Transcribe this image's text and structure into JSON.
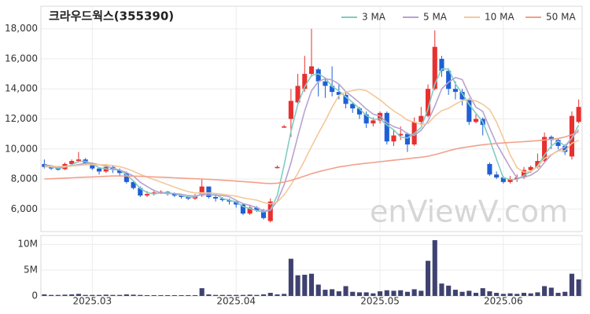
{
  "chart_data": {
    "type": "candlestick",
    "title": "크라우드웍스(355390)",
    "watermark": "enViewV.com",
    "categories": [
      null,
      null,
      null,
      null,
      null,
      null,
      null,
      "2025.03",
      null,
      null,
      null,
      null,
      null,
      null,
      null,
      null,
      null,
      null,
      null,
      null,
      null,
      null,
      null,
      null,
      null,
      null,
      null,
      null,
      "2025.04",
      null,
      null,
      null,
      null,
      null,
      null,
      null,
      null,
      null,
      null,
      null,
      null,
      null,
      null,
      null,
      null,
      null,
      null,
      null,
      null,
      "2025.05",
      null,
      null,
      null,
      null,
      null,
      null,
      null,
      null,
      null,
      null,
      null,
      null,
      null,
      null,
      null,
      null,
      null,
      "2025.06",
      null,
      null,
      null,
      null,
      null,
      null,
      null,
      null,
      null,
      null,
      null
    ],
    "open": [
      9000,
      8800,
      8700,
      8650,
      9000,
      9200,
      9300,
      9050,
      8700,
      8500,
      8800,
      8600,
      8400,
      7800,
      7400,
      6900,
      7000,
      7100,
      7150,
      7000,
      6900,
      6800,
      6700,
      6900,
      7500,
      6800,
      6700,
      6600,
      6500,
      6300,
      5700,
      6100,
      5900,
      5200,
      8750,
      11450,
      12000,
      13100,
      14000,
      15000,
      15300,
      14500,
      14200,
      13800,
      13600,
      13000,
      12700,
      12300,
      11700,
      11900,
      12400,
      10500,
      10900,
      11000,
      10300,
      11800,
      12200,
      14000,
      16000,
      15200,
      14000,
      13800,
      13300,
      11800,
      12000,
      9000,
      8300,
      8100,
      7800,
      8000,
      8100,
      8600,
      8800,
      9200,
      10800,
      10600,
      10200,
      9500,
      11800
    ],
    "high": [
      9300,
      8900,
      8800,
      9100,
      9300,
      9800,
      9400,
      9100,
      8800,
      9000,
      8900,
      8700,
      8500,
      7900,
      7500,
      7200,
      7300,
      7250,
      7200,
      7100,
      7000,
      6900,
      7000,
      8000,
      7500,
      6900,
      6800,
      6700,
      6600,
      6400,
      6300,
      6200,
      6000,
      6700,
      8900,
      11600,
      14000,
      15000,
      16200,
      18000,
      15400,
      14700,
      15500,
      14300,
      13800,
      13100,
      12800,
      12500,
      12100,
      12500,
      12500,
      11300,
      11500,
      11100,
      12100,
      12800,
      14300,
      17900,
      16200,
      15300,
      14500,
      14000,
      13400,
      12300,
      12100,
      9100,
      8500,
      8200,
      8200,
      8300,
      8800,
      8900,
      9700,
      11100,
      10900,
      10700,
      10300,
      12500,
      13300
    ],
    "low": [
      8700,
      8600,
      8550,
      8600,
      8900,
      9100,
      8900,
      8600,
      8300,
      8400,
      8400,
      8200,
      7700,
      7300,
      6800,
      6800,
      6900,
      7000,
      6900,
      6800,
      6700,
      6600,
      6600,
      6800,
      6700,
      6500,
      6500,
      6300,
      6100,
      5600,
      5600,
      5800,
      5300,
      5100,
      8700,
      11400,
      10800,
      13000,
      13800,
      14800,
      13500,
      13400,
      13500,
      13300,
      12700,
      12400,
      12000,
      11400,
      11500,
      11700,
      10300,
      10200,
      10600,
      9800,
      10200,
      11600,
      12100,
      13900,
      14800,
      13600,
      13300,
      12900,
      11600,
      11700,
      10900,
      8200,
      8000,
      7700,
      7700,
      7800,
      8000,
      8400,
      8700,
      9100,
      10000,
      10000,
      9600,
      9300,
      11700
    ],
    "close": [
      8800,
      8700,
      8650,
      9000,
      9200,
      9300,
      9050,
      8700,
      8500,
      8800,
      8600,
      8400,
      7800,
      7400,
      6900,
      7000,
      7100,
      7150,
      7000,
      6900,
      6800,
      6700,
      6900,
      7500,
      6800,
      6700,
      6600,
      6500,
      6300,
      5700,
      6100,
      5900,
      5400,
      6500,
      8800,
      11500,
      13200,
      14200,
      15000,
      15500,
      14500,
      14200,
      13800,
      13600,
      13000,
      12700,
      12300,
      11700,
      11900,
      12400,
      10500,
      10900,
      11000,
      10300,
      11800,
      12200,
      14000,
      16800,
      15200,
      14000,
      13800,
      13300,
      11800,
      12000,
      11600,
      8300,
      8100,
      7800,
      8000,
      8100,
      8600,
      8800,
      9200,
      10800,
      10600,
      10200,
      9800,
      12200,
      12800
    ],
    "up_color": "#e8302f",
    "down_color": "#1f5fd6",
    "ylim": [
      4500,
      19500
    ],
    "yticks": [
      {
        "value": 6000,
        "label": "6,000"
      },
      {
        "value": 8000,
        "label": "8,000"
      },
      {
        "value": 10000,
        "label": "10,000"
      },
      {
        "value": 12000,
        "label": "12,000"
      },
      {
        "value": 14000,
        "label": "14,000"
      },
      {
        "value": 16000,
        "label": "16,000"
      },
      {
        "value": 18000,
        "label": "18,000"
      }
    ],
    "grid": true,
    "legend": "top-right",
    "series": [
      {
        "name": "3 MA",
        "color": "#7fcdc4",
        "values": [
          8900,
          8800,
          8720,
          8780,
          8950,
          9170,
          9180,
          9020,
          8750,
          8670,
          8630,
          8600,
          8270,
          7870,
          7370,
          7100,
          7000,
          7080,
          7080,
          7020,
          6900,
          6800,
          6800,
          7030,
          7070,
          7000,
          6700,
          6600,
          6470,
          6170,
          6030,
          5900,
          5800,
          5930,
          6900,
          8930,
          11170,
          12970,
          14130,
          14900,
          15000,
          14730,
          14170,
          13870,
          13470,
          13100,
          12670,
          12230,
          11970,
          12000,
          11600,
          11270,
          10800,
          10730,
          11030,
          11430,
          12670,
          14330,
          15330,
          15330,
          14330,
          13700,
          12970,
          12370,
          11800,
          10630,
          9330,
          8070,
          7970,
          7970,
          8230,
          8500,
          8870,
          9600,
          10200,
          10530,
          10200,
          10730,
          11600
        ]
      },
      {
        "name": "5 MA",
        "color": "#b7a3cf",
        "values": [
          8950,
          8880,
          8800,
          8800,
          8870,
          8970,
          9040,
          9050,
          8950,
          8870,
          8730,
          8600,
          8420,
          8200,
          7780,
          7500,
          7240,
          7070,
          7030,
          7030,
          6990,
          6900,
          6860,
          6960,
          6940,
          6920,
          6900,
          6820,
          6580,
          6360,
          6240,
          6100,
          5880,
          5920,
          6540,
          7620,
          9080,
          10840,
          12540,
          13880,
          14480,
          14680,
          14600,
          14320,
          13820,
          13460,
          13080,
          12660,
          12320,
          12200,
          11760,
          11480,
          11340,
          11020,
          10900,
          11240,
          11860,
          12860,
          14000,
          14440,
          14760,
          14620,
          13620,
          12780,
          12500,
          11400,
          10360,
          9560,
          8760,
          8060,
          8120,
          8260,
          8540,
          9100,
          9600,
          9900,
          10120,
          10720,
          11280
        ]
      },
      {
        "name": "10 MA",
        "color": "#f3c89a",
        "values": [
          8800,
          8820,
          8840,
          8850,
          8870,
          8900,
          8950,
          8960,
          8950,
          8950,
          8900,
          8820,
          8690,
          8520,
          8310,
          8130,
          7960,
          7800,
          7630,
          7460,
          7300,
          7160,
          7070,
          7080,
          7070,
          7040,
          6990,
          6920,
          6860,
          6740,
          6670,
          6590,
          6440,
          6340,
          6470,
          6940,
          7610,
          8380,
          9250,
          10160,
          11040,
          11870,
          12770,
          13570,
          13790,
          13890,
          13970,
          13880,
          13580,
          13270,
          12890,
          12530,
          12250,
          11920,
          11790,
          11630,
          11690,
          12200,
          12550,
          12710,
          12980,
          13220,
          13300,
          13200,
          12970,
          12620,
          11800,
          10720,
          9600,
          8750,
          8450,
          8520,
          8810,
          9370,
          9630,
          9870,
          9880,
          10380,
          10580
        ]
      },
      {
        "name": "50 MA",
        "color": "#f2a08c",
        "values": [
          8000,
          8020,
          8040,
          8060,
          8080,
          8100,
          8120,
          8140,
          8160,
          8180,
          8200,
          8200,
          8200,
          8190,
          8180,
          8160,
          8140,
          8120,
          8100,
          8080,
          8060,
          8040,
          8020,
          8000,
          7980,
          7950,
          7920,
          7890,
          7860,
          7830,
          7800,
          7760,
          7720,
          7700,
          7720,
          7800,
          7900,
          8050,
          8200,
          8350,
          8480,
          8600,
          8700,
          8800,
          8870,
          8940,
          9000,
          9050,
          9100,
          9150,
          9200,
          9250,
          9300,
          9350,
          9400,
          9450,
          9520,
          9620,
          9750,
          9880,
          10000,
          10080,
          10150,
          10220,
          10280,
          10330,
          10370,
          10400,
          10430,
          10460,
          10490,
          10520,
          10550,
          10600,
          10650,
          10700,
          10800,
          10950,
          11150
        ]
      }
    ],
    "volume": {
      "type": "bar",
      "color": "#3f4270",
      "values": [
        300000,
        200000,
        200000,
        250000,
        300000,
        400000,
        200000,
        200000,
        200000,
        250000,
        200000,
        200000,
        300000,
        250000,
        200000,
        150000,
        150000,
        150000,
        150000,
        150000,
        150000,
        150000,
        150000,
        1500000,
        300000,
        200000,
        200000,
        200000,
        200000,
        200000,
        250000,
        200000,
        300000,
        600000,
        300000,
        400000,
        7200000,
        4000000,
        4100000,
        4300000,
        2200000,
        1200000,
        1300000,
        900000,
        1900000,
        800000,
        700000,
        700000,
        500000,
        900000,
        1100000,
        1000000,
        1100000,
        800000,
        1300000,
        1000000,
        6800000,
        10800000,
        2400000,
        2000000,
        1200000,
        800000,
        1000000,
        600000,
        1500000,
        900000,
        600000,
        400000,
        500000,
        400000,
        600000,
        500000,
        700000,
        1900000,
        1600000,
        600000,
        800000,
        4300000,
        3200000
      ],
      "ylim": [
        0,
        11700000
      ],
      "yticks": [
        {
          "value": 0,
          "label": "0"
        },
        {
          "value": 5000000,
          "label": "5M"
        },
        {
          "value": 10000000,
          "label": "10M"
        }
      ]
    }
  }
}
